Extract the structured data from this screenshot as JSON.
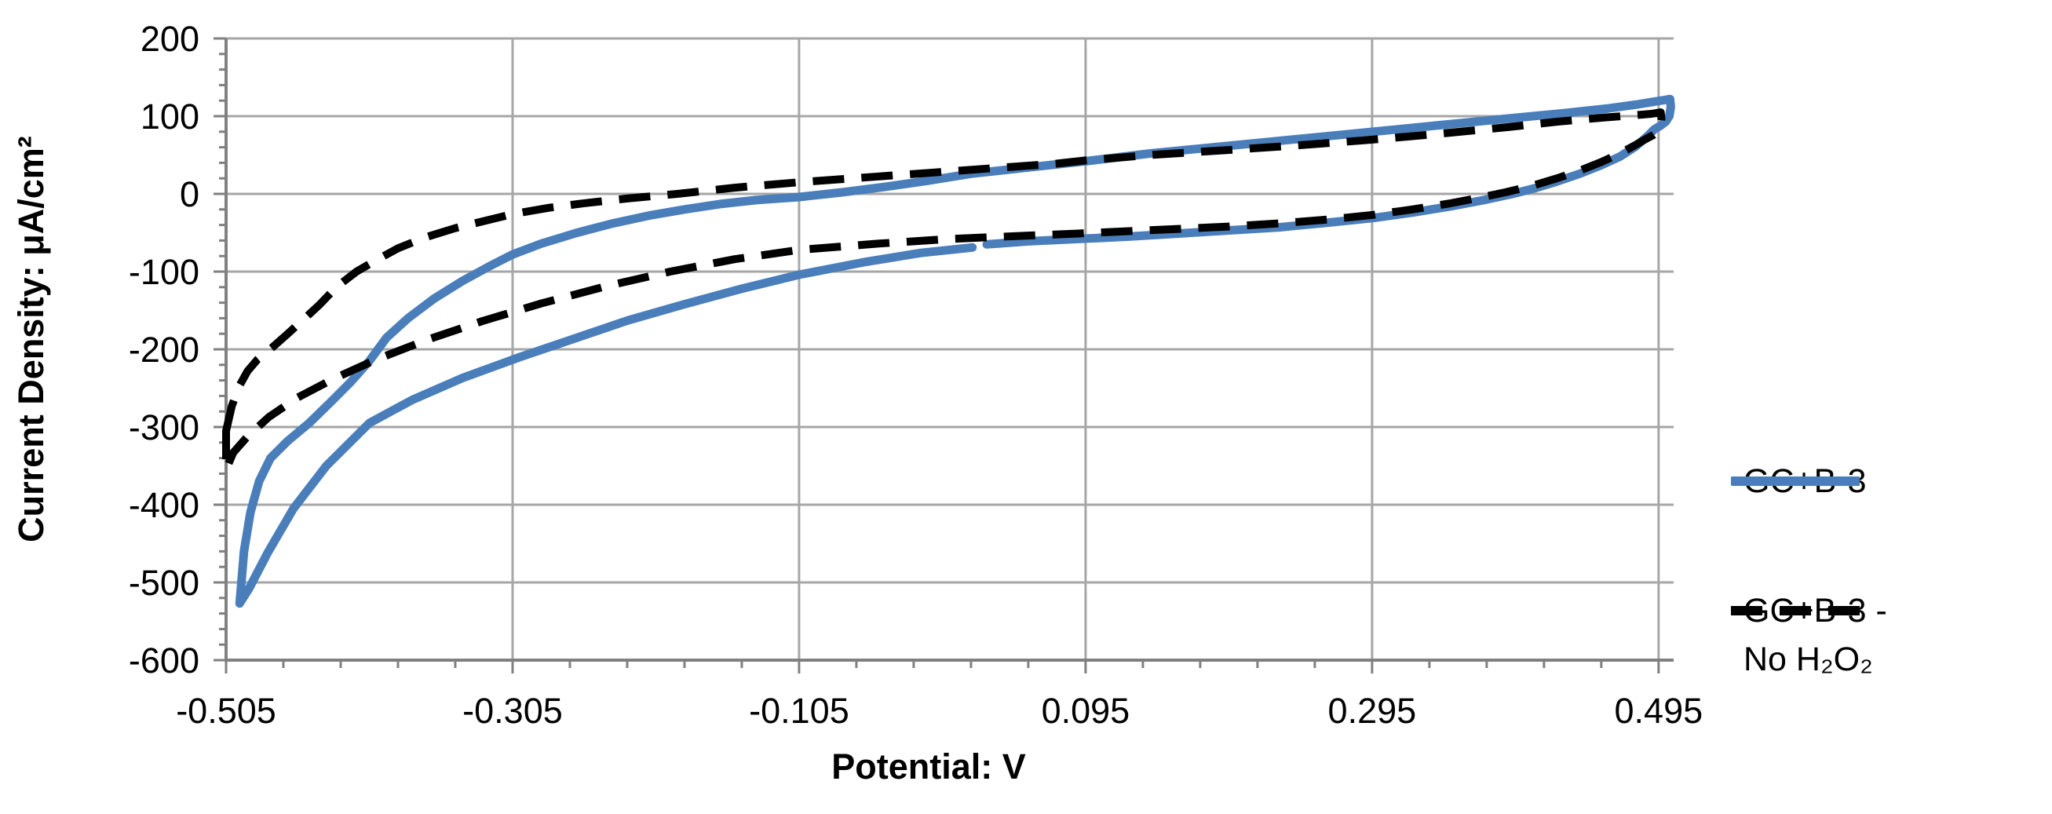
{
  "chart_data": {
    "type": "line",
    "title": "",
    "xlabel": "Potential: V",
    "ylabel": "Current Density: μA/cm²",
    "xlim": [
      -0.505,
      0.5055
    ],
    "ylim": [
      -600,
      200
    ],
    "x_ticks": [
      -0.505,
      -0.305,
      -0.105,
      0.095,
      0.295,
      0.495
    ],
    "x_tick_labels": [
      "-0.505",
      "-0.305",
      "-0.105",
      "0.095",
      "0.295",
      "0.495"
    ],
    "y_ticks": [
      200,
      100,
      0,
      -100,
      -200,
      -300,
      -400,
      -500,
      -600
    ],
    "y_tick_labels": [
      "200",
      "100",
      "0",
      "-100",
      "-200",
      "-300",
      "-400",
      "-500",
      "-600"
    ],
    "x_minor_step": 0.04,
    "y_minor_step": 20,
    "grid": true,
    "legend_position": "right",
    "series": [
      {
        "name": "GC+B-3",
        "color": "#4A7EBB",
        "dash": "solid",
        "width": 11,
        "closed": false,
        "points": [
          [
            0.016,
            -69
          ],
          [
            -0.02,
            -76
          ],
          [
            -0.06,
            -88
          ],
          [
            -0.105,
            -104
          ],
          [
            -0.145,
            -122
          ],
          [
            -0.185,
            -142
          ],
          [
            -0.225,
            -163
          ],
          [
            -0.26,
            -185
          ],
          [
            -0.3,
            -210
          ],
          [
            -0.34,
            -237
          ],
          [
            -0.375,
            -265
          ],
          [
            -0.405,
            -295
          ],
          [
            -0.435,
            -350
          ],
          [
            -0.458,
            -405
          ],
          [
            -0.476,
            -462
          ],
          [
            -0.489,
            -508
          ],
          [
            -0.4955,
            -527
          ],
          [
            -0.4925,
            -460
          ],
          [
            -0.488,
            -410
          ],
          [
            -0.482,
            -370
          ],
          [
            -0.474,
            -340
          ],
          [
            -0.462,
            -318
          ],
          [
            -0.447,
            -295
          ],
          [
            -0.432,
            -268
          ],
          [
            -0.418,
            -242
          ],
          [
            -0.405,
            -215
          ],
          [
            -0.393,
            -185
          ],
          [
            -0.378,
            -160
          ],
          [
            -0.36,
            -135
          ],
          [
            -0.34,
            -112
          ],
          [
            -0.32,
            -92
          ],
          [
            -0.305,
            -78
          ],
          [
            -0.285,
            -64
          ],
          [
            -0.26,
            -50
          ],
          [
            -0.235,
            -38
          ],
          [
            -0.21,
            -28
          ],
          [
            -0.185,
            -20
          ],
          [
            -0.16,
            -13
          ],
          [
            -0.135,
            -8
          ],
          [
            -0.105,
            -4
          ],
          [
            -0.075,
            2
          ],
          [
            -0.045,
            9
          ],
          [
            -0.015,
            17
          ],
          [
            0.015,
            26
          ],
          [
            0.05,
            33
          ],
          [
            0.095,
            42
          ],
          [
            0.14,
            52
          ],
          [
            0.19,
            61
          ],
          [
            0.24,
            70
          ],
          [
            0.29,
            79
          ],
          [
            0.34,
            88
          ],
          [
            0.39,
            97
          ],
          [
            0.43,
            104
          ],
          [
            0.46,
            110
          ],
          [
            0.48,
            115
          ],
          [
            0.493,
            119
          ],
          [
            0.5,
            121
          ],
          [
            0.503,
            122
          ],
          [
            0.5035,
            112
          ],
          [
            0.5025,
            100
          ],
          [
            0.5,
            93
          ],
          [
            0.4965,
            88
          ],
          [
            0.492,
            83
          ],
          [
            0.4865,
            73
          ],
          [
            0.479,
            61
          ],
          [
            0.468,
            48
          ],
          [
            0.455,
            37
          ],
          [
            0.44,
            26
          ],
          [
            0.424,
            16
          ],
          [
            0.408,
            7
          ],
          [
            0.393,
            0
          ],
          [
            0.373,
            -8
          ],
          [
            0.35,
            -16
          ],
          [
            0.323,
            -24
          ],
          [
            0.296,
            -31
          ],
          [
            0.264,
            -37
          ],
          [
            0.23,
            -43
          ],
          [
            0.195,
            -47
          ],
          [
            0.16,
            -51
          ],
          [
            0.125,
            -55
          ],
          [
            0.09,
            -58
          ],
          [
            0.055,
            -61
          ],
          [
            0.026,
            -65
          ]
        ]
      },
      {
        "name": "GC+B-3 - No H₂O₂",
        "color": "#000000",
        "dash": "dashed",
        "width": 10,
        "closed": true,
        "points": [
          [
            -0.505,
            -305
          ],
          [
            -0.501,
            -273
          ],
          [
            -0.496,
            -248
          ],
          [
            -0.49,
            -228
          ],
          [
            -0.483,
            -213
          ],
          [
            -0.473,
            -198
          ],
          [
            -0.462,
            -180
          ],
          [
            -0.45,
            -160
          ],
          [
            -0.44,
            -143
          ],
          [
            -0.428,
            -120
          ],
          [
            -0.414,
            -100
          ],
          [
            -0.4,
            -85
          ],
          [
            -0.385,
            -70
          ],
          [
            -0.366,
            -56
          ],
          [
            -0.345,
            -44
          ],
          [
            -0.325,
            -35
          ],
          [
            -0.305,
            -26
          ],
          [
            -0.28,
            -18
          ],
          [
            -0.255,
            -12
          ],
          [
            -0.225,
            -6
          ],
          [
            -0.19,
            0
          ],
          [
            -0.15,
            8
          ],
          [
            -0.105,
            15
          ],
          [
            -0.06,
            21
          ],
          [
            -0.015,
            27
          ],
          [
            0.03,
            33
          ],
          [
            0.075,
            39
          ],
          [
            0.095,
            43
          ],
          [
            0.14,
            50
          ],
          [
            0.19,
            56
          ],
          [
            0.24,
            62
          ],
          [
            0.29,
            69
          ],
          [
            0.34,
            77
          ],
          [
            0.39,
            86
          ],
          [
            0.425,
            93
          ],
          [
            0.455,
            98
          ],
          [
            0.477,
            101
          ],
          [
            0.49,
            103
          ],
          [
            0.4965,
            105
          ],
          [
            0.497,
            96
          ],
          [
            0.4965,
            87
          ],
          [
            0.4945,
            80
          ],
          [
            0.4915,
            76
          ],
          [
            0.4865,
            71
          ],
          [
            0.479,
            63
          ],
          [
            0.468,
            52
          ],
          [
            0.455,
            41
          ],
          [
            0.44,
            30
          ],
          [
            0.424,
            20
          ],
          [
            0.406,
            10
          ],
          [
            0.388,
            2
          ],
          [
            0.37,
            -5
          ],
          [
            0.35,
            -12
          ],
          [
            0.323,
            -20
          ],
          [
            0.296,
            -27
          ],
          [
            0.264,
            -33
          ],
          [
            0.23,
            -38
          ],
          [
            0.195,
            -42
          ],
          [
            0.16,
            -45
          ],
          [
            0.125,
            -48
          ],
          [
            0.09,
            -51
          ],
          [
            0.05,
            -54
          ],
          [
            0.0,
            -58
          ],
          [
            -0.05,
            -64
          ],
          [
            -0.105,
            -72
          ],
          [
            -0.15,
            -84
          ],
          [
            -0.195,
            -100
          ],
          [
            -0.24,
            -119
          ],
          [
            -0.285,
            -141
          ],
          [
            -0.325,
            -163
          ],
          [
            -0.365,
            -188
          ],
          [
            -0.4,
            -213
          ],
          [
            -0.43,
            -238
          ],
          [
            -0.455,
            -262
          ],
          [
            -0.475,
            -287
          ],
          [
            -0.49,
            -312
          ],
          [
            -0.5,
            -333
          ],
          [
            -0.505,
            -355
          ]
        ]
      }
    ]
  },
  "legend": {
    "items": [
      {
        "label": "GC+B-3",
        "line1": "GC+B-3",
        "line2": ""
      },
      {
        "label": "GC+B-3 - No H₂O₂",
        "line1": "GC+B-3 -",
        "line2": "No H₂O₂"
      }
    ]
  },
  "colors": {
    "series1": "#4A7EBB",
    "series2": "#000000",
    "gridline": "#A6A6A6",
    "axis": "#808080",
    "text": "#000000",
    "background": "#FFFFFF"
  }
}
